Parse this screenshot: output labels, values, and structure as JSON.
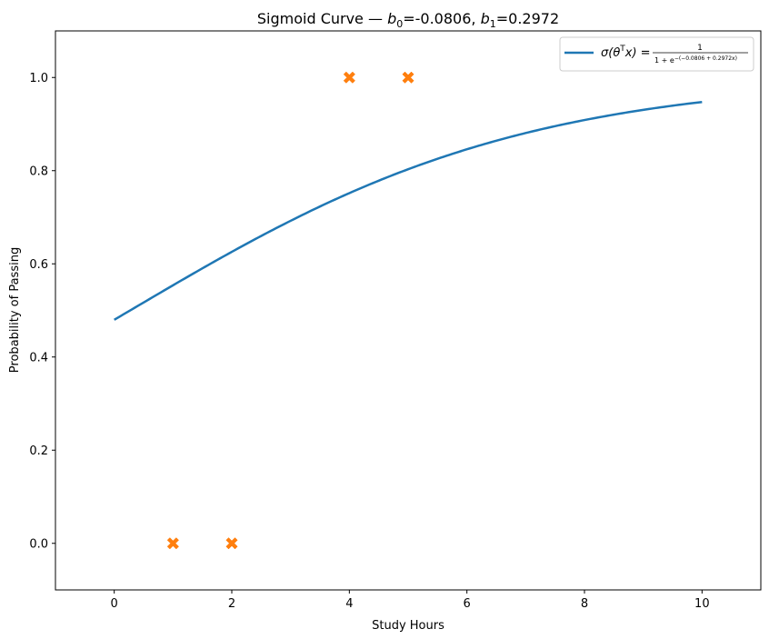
{
  "chart_data": {
    "type": "scatter",
    "title_parts": {
      "prefix": "Sigmoid Curve — ",
      "b0_symbol": "b",
      "b0_sub": "0",
      "b0_value": "=-0.0806, ",
      "b1_symbol": "b",
      "b1_sub": "1",
      "b1_value": "=0.2972"
    },
    "xlabel": "Study Hours",
    "ylabel": "Probability of Passing",
    "xlim": [
      -1,
      11
    ],
    "ylim": [
      -0.1,
      1.1
    ],
    "xticks": [
      0,
      2,
      4,
      6,
      8,
      10
    ],
    "xtick_labels": [
      "0",
      "2",
      "4",
      "6",
      "8",
      "10"
    ],
    "yticks": [
      0.0,
      0.2,
      0.4,
      0.6,
      0.8,
      1.0
    ],
    "ytick_labels": [
      "0.0",
      "0.2",
      "0.4",
      "0.6",
      "0.8",
      "1.0"
    ],
    "grid": false,
    "legend_position": "top-right",
    "colors": {
      "curve": "#1f77b4",
      "points": "#ff7f0e"
    },
    "curve": {
      "b0": -0.0806,
      "b1": 0.2972,
      "x_range": [
        0,
        10
      ],
      "legend_label": {
        "lhs_sigma": "σ(",
        "lhs_theta": "θ",
        "lhs_sup": "T",
        "lhs_x": "x) = ",
        "numerator": "1",
        "denominator_base": "1 + e",
        "denominator_exp": "−(−0.0806 + 0.2972x)"
      }
    },
    "points": {
      "marker": "X",
      "x": [
        1,
        2,
        4,
        5
      ],
      "y": [
        0,
        0,
        1,
        1
      ]
    }
  }
}
